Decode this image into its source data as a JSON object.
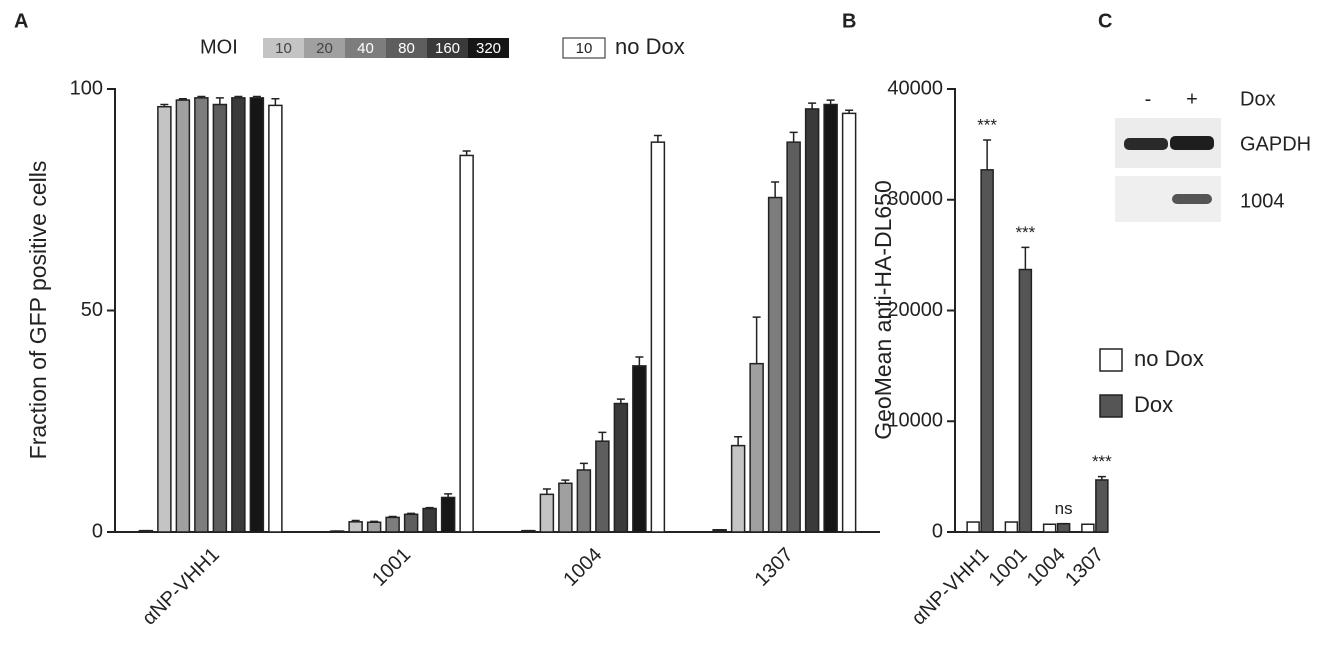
{
  "chart_data": [
    {
      "panel": "A",
      "type": "bar",
      "ylabel": "Fraction of GFP positive cells",
      "categories": [
        "αNP-VHH1",
        "1001",
        "1004",
        "1307"
      ],
      "legend_title": "MOI",
      "series": [
        {
          "color": "#222222",
          "values": [
            0.3,
            0.2,
            0.3,
            0.5
          ],
          "errors": [
            0,
            0,
            0,
            0
          ]
        },
        {
          "name": "10",
          "color": "#c4c4c4",
          "values": [
            96,
            2.3,
            8.5,
            19.5
          ],
          "errors": [
            0.5,
            0.3,
            1.2,
            2
          ]
        },
        {
          "name": "20",
          "color": "#a0a0a0",
          "values": [
            97.5,
            2.2,
            11,
            38
          ],
          "errors": [
            0.3,
            0.2,
            0.7,
            10.5
          ]
        },
        {
          "name": "40",
          "color": "#7d7d7d",
          "values": [
            98,
            3.3,
            14,
            75.5
          ],
          "errors": [
            0.3,
            0.2,
            1.5,
            3.5
          ]
        },
        {
          "name": "80",
          "color": "#5e5e5e",
          "values": [
            96.5,
            4,
            20.5,
            88
          ],
          "errors": [
            1.5,
            0.2,
            2,
            2.2
          ]
        },
        {
          "name": "160",
          "color": "#3a3a3a",
          "values": [
            98,
            5.3,
            29,
            95.5
          ],
          "errors": [
            0.3,
            0.2,
            1,
            1.3
          ]
        },
        {
          "name": "320",
          "color": "#161616",
          "values": [
            98,
            7.8,
            37.5,
            96.5
          ],
          "errors": [
            0.3,
            0.8,
            2,
            1
          ]
        },
        {
          "name": "10",
          "label": "no Dox",
          "color": "#ffffff",
          "values": [
            96.3,
            85,
            88,
            94.5
          ],
          "errors": [
            1.5,
            1,
            1.5,
            0.7
          ]
        }
      ],
      "ylim": [
        0,
        100
      ],
      "yticks": [
        0,
        50,
        100
      ]
    },
    {
      "panel": "B",
      "type": "bar",
      "ylabel": "GeoMean anti-HA-DL650",
      "categories": [
        "αNP-VHH1",
        "1001",
        "1004",
        "1307"
      ],
      "series": [
        {
          "name": "no Dox",
          "color": "#ffffff",
          "values": [
            900,
            900,
            700,
            700
          ]
        },
        {
          "name": "Dox",
          "color": "#555555",
          "values": [
            32700,
            23700,
            750,
            4700
          ],
          "errors": [
            2700,
            2000,
            0,
            300
          ]
        }
      ],
      "annotations": [
        "***",
        "***",
        "ns",
        "***"
      ],
      "ylim": [
        0,
        40000
      ],
      "yticks": [
        0,
        10000,
        20000,
        30000,
        40000
      ]
    }
  ],
  "blot": {
    "panel": "C",
    "lanes": [
      "-",
      "+"
    ],
    "treatment": "Dox",
    "rows": [
      "GAPDH",
      "1004"
    ]
  }
}
